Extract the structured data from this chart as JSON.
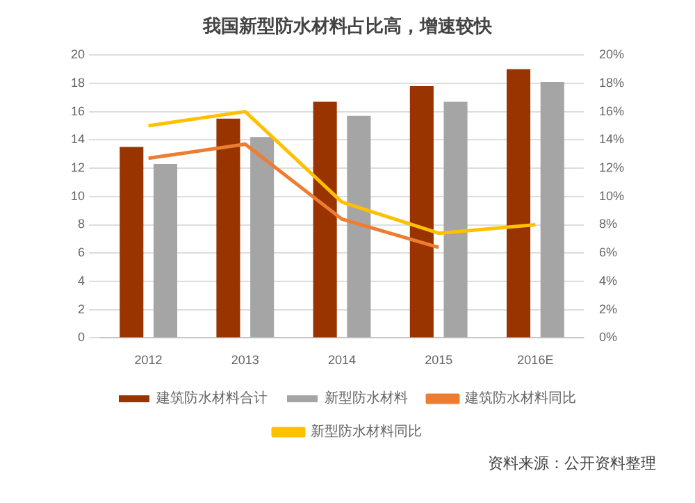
{
  "chart_data": {
    "type": "bar",
    "title": "我国新型防水材料占比高，增速较快",
    "categories": [
      "2012",
      "2013",
      "2014",
      "2015",
      "2016E"
    ],
    "series": [
      {
        "name": "建筑防水材料合计",
        "color": "#993300",
        "values": [
          13.5,
          15.5,
          16.7,
          17.8,
          19.0
        ]
      },
      {
        "name": "新型防水材料",
        "color": "#a5a5a5",
        "values": [
          12.3,
          14.2,
          15.7,
          16.7,
          18.1
        ]
      },
      {
        "name": "建筑防水材料同比",
        "type": "line",
        "axis": "y2",
        "color": "#ed7d31",
        "values": [
          12.7,
          13.7,
          8.4,
          6.4,
          null
        ]
      },
      {
        "name": "新型防水材料同比",
        "type": "line",
        "axis": "y2",
        "color": "#ffc000",
        "values": [
          15.0,
          16.0,
          9.6,
          7.4,
          8.0
        ]
      }
    ],
    "ylim": [
      0,
      20
    ],
    "yticks": [
      0,
      2,
      4,
      6,
      8,
      10,
      12,
      14,
      16,
      18,
      20
    ],
    "y2lim": [
      0,
      20
    ],
    "y2ticks": [
      {
        "value": 0,
        "label": "0%"
      },
      {
        "value": 2,
        "label": "2%"
      },
      {
        "value": 4,
        "label": "4%"
      },
      {
        "value": 6,
        "label": "6%"
      },
      {
        "value": 8,
        "label": "8%"
      },
      {
        "value": 10,
        "label": "10%"
      },
      {
        "value": 12,
        "label": "12%"
      },
      {
        "value": 14,
        "label": "14%"
      },
      {
        "value": 16,
        "label": "16%"
      },
      {
        "value": 18,
        "label": "18%"
      },
      {
        "value": 20,
        "label": "20%"
      }
    ],
    "grid": "y",
    "legend": "bottom",
    "marker": "none",
    "annotations": [
      "资料来源：公开资料整理"
    ]
  }
}
